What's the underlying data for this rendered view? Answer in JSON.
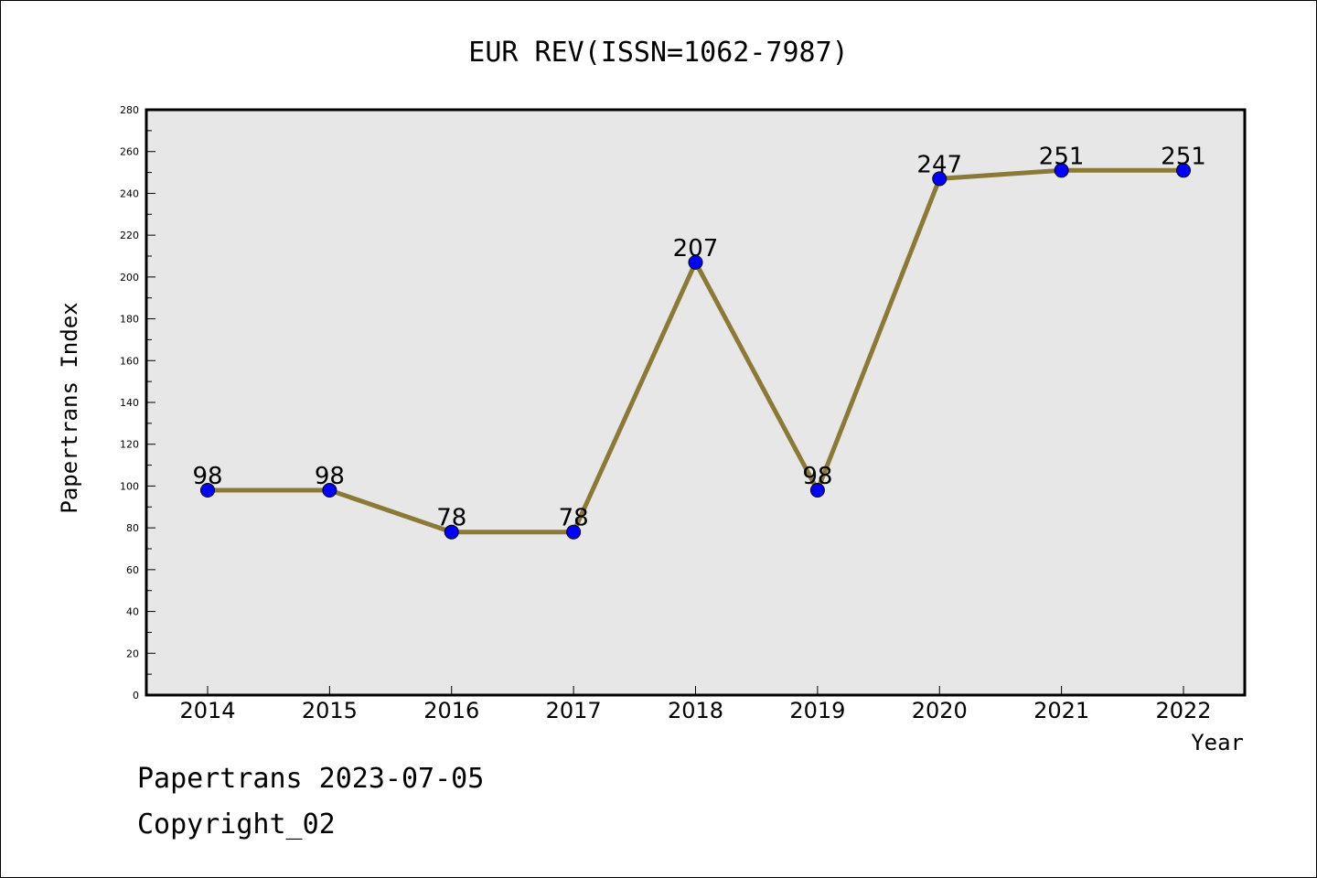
{
  "chart_data": {
    "type": "line",
    "title": "EUR REV(ISSN=1062-7987)",
    "xlabel": "Year",
    "ylabel": "Papertrans Index",
    "categories": [
      "2014",
      "2015",
      "2016",
      "2017",
      "2018",
      "2019",
      "2020",
      "2021",
      "2022"
    ],
    "series": [
      {
        "name": "Papertrans Index",
        "values": [
          98,
          98,
          78,
          78,
          207,
          98,
          247,
          251,
          251
        ]
      }
    ],
    "ylim": [
      0,
      280
    ],
    "yticks": [
      "0",
      "20",
      "40",
      "60",
      "80",
      "100",
      "120",
      "140",
      "160",
      "180",
      "200",
      "220",
      "240",
      "260",
      "280"
    ],
    "grid": false,
    "colors": {
      "line": "#8B7A35",
      "marker": "#0000FF",
      "plot_background": "#E7E7E7"
    }
  },
  "footer": {
    "date_line": "Papertrans 2023-07-05",
    "copyright": "Copyright_02"
  }
}
